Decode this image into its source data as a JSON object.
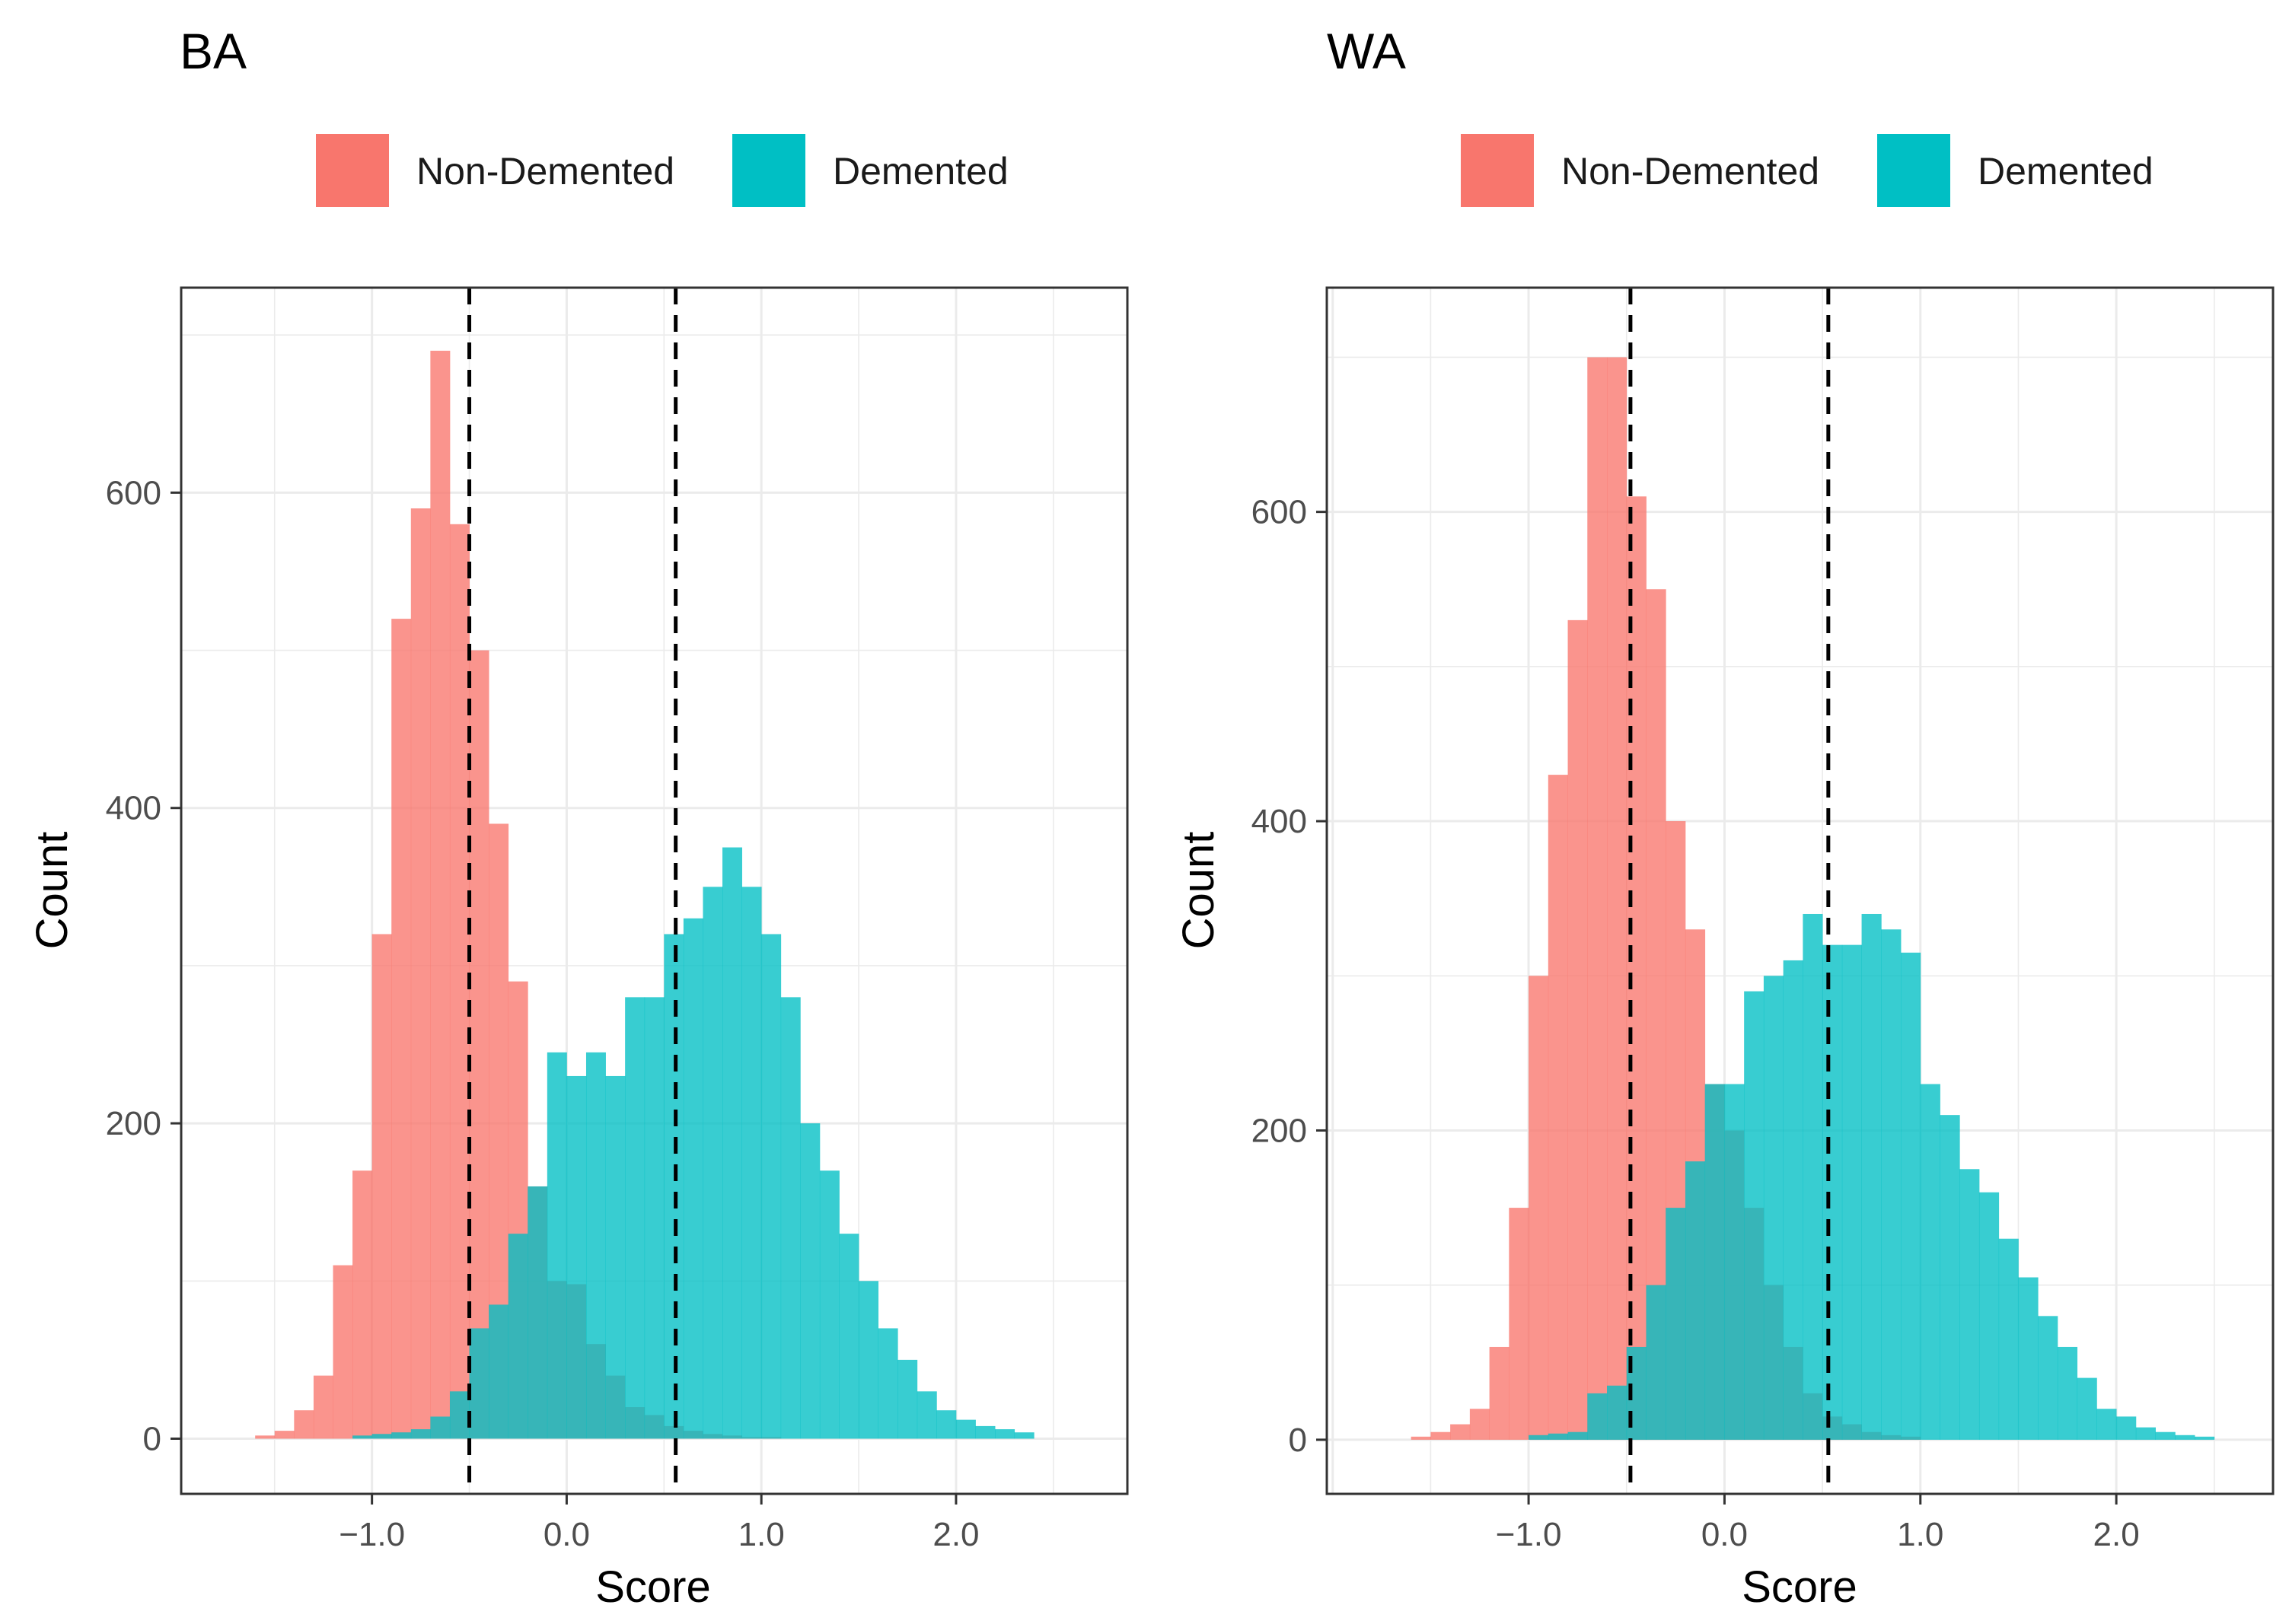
{
  "chart_data": [
    {
      "type": "histogram",
      "title": "BA",
      "xlabel": "Score",
      "ylabel": "Count",
      "xlim": [
        -1.98,
        2.88
      ],
      "ylim": [
        -35,
        730
      ],
      "x_ticks": [
        -1.0,
        0.0,
        1.0,
        2.0
      ],
      "x_tick_labels": [
        "−1.0",
        "0.0",
        "1.0",
        "2.0"
      ],
      "y_ticks": [
        0,
        200,
        400,
        600
      ],
      "y_tick_labels": [
        "0",
        "200",
        "400",
        "600"
      ],
      "bin_width": 0.1,
      "legend": {
        "position": "top",
        "entries": [
          "Non-Demented",
          "Demented"
        ]
      },
      "vlines": [
        -0.5,
        0.56
      ],
      "series": [
        {
          "name": "Non-Demented",
          "color": "#F8766D",
          "x_start": -1.6,
          "counts": [
            2,
            5,
            18,
            40,
            110,
            170,
            320,
            520,
            590,
            690,
            580,
            500,
            390,
            290,
            160,
            100,
            98,
            60,
            40,
            20,
            15,
            8,
            5,
            3,
            2,
            1,
            1
          ]
        },
        {
          "name": "Demented",
          "color": "#00BFC4",
          "x_start": -1.1,
          "counts": [
            2,
            3,
            4,
            6,
            14,
            30,
            70,
            85,
            130,
            160,
            245,
            230,
            245,
            230,
            280,
            280,
            320,
            330,
            350,
            375,
            350,
            320,
            280,
            200,
            170,
            130,
            100,
            70,
            50,
            30,
            18,
            12,
            8,
            6,
            4
          ]
        }
      ]
    },
    {
      "type": "histogram",
      "title": "WA",
      "xlabel": "Score",
      "ylabel": "Count",
      "xlim": [
        -2.03,
        2.8
      ],
      "ylim": [
        -35,
        745
      ],
      "x_ticks": [
        -1.0,
        0.0,
        1.0,
        2.0
      ],
      "x_tick_labels": [
        "−1.0",
        "0.0",
        "1.0",
        "2.0"
      ],
      "y_ticks": [
        0,
        200,
        400,
        600
      ],
      "y_tick_labels": [
        "0",
        "200",
        "400",
        "600"
      ],
      "bin_width": 0.1,
      "legend": {
        "position": "top",
        "entries": [
          "Non-Demented",
          "Demented"
        ]
      },
      "vlines": [
        -0.48,
        0.53
      ],
      "series": [
        {
          "name": "Non-Demented",
          "color": "#F8766D",
          "x_start": -1.6,
          "counts": [
            2,
            5,
            10,
            20,
            60,
            150,
            300,
            430,
            530,
            700,
            700,
            610,
            550,
            400,
            330,
            230,
            200,
            150,
            100,
            60,
            30,
            15,
            10,
            5,
            3,
            2
          ]
        },
        {
          "name": "Demented",
          "color": "#00BFC4",
          "x_start": -1.0,
          "counts": [
            3,
            4,
            5,
            30,
            35,
            60,
            100,
            150,
            180,
            230,
            230,
            290,
            300,
            310,
            340,
            320,
            320,
            340,
            330,
            315,
            230,
            210,
            175,
            160,
            130,
            105,
            80,
            60,
            40,
            20,
            15,
            8,
            5,
            3,
            2
          ]
        }
      ]
    }
  ]
}
